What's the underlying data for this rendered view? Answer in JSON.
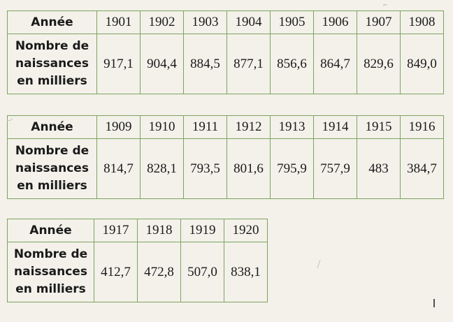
{
  "tables": [
    {
      "year_label": "Année",
      "births_label": [
        "Nombre de",
        "naissances",
        "en milliers"
      ],
      "years": [
        "1901",
        "1902",
        "1903",
        "1904",
        "1905",
        "1906",
        "1907",
        "1908"
      ],
      "births": [
        "917,1",
        "904,4",
        "884,5",
        "877,1",
        "856,6",
        "864,7",
        "829,6",
        "849,0"
      ]
    },
    {
      "year_label": "Année",
      "births_label": [
        "Nombre de",
        "naissances",
        "en milliers"
      ],
      "years": [
        "1909",
        "1910",
        "1911",
        "1912",
        "1913",
        "1914",
        "1915",
        "1916"
      ],
      "births": [
        "814,7",
        "828,1",
        "793,5",
        "801,6",
        "795,9",
        "757,9",
        "483",
        "384,7"
      ]
    },
    {
      "year_label": "Année",
      "births_label": [
        "Nombre de",
        "naissances",
        "en milliers"
      ],
      "years": [
        "1917",
        "1918",
        "1919",
        "1920"
      ],
      "births": [
        "412,7",
        "472,8",
        "507,0",
        "838,1"
      ]
    }
  ]
}
